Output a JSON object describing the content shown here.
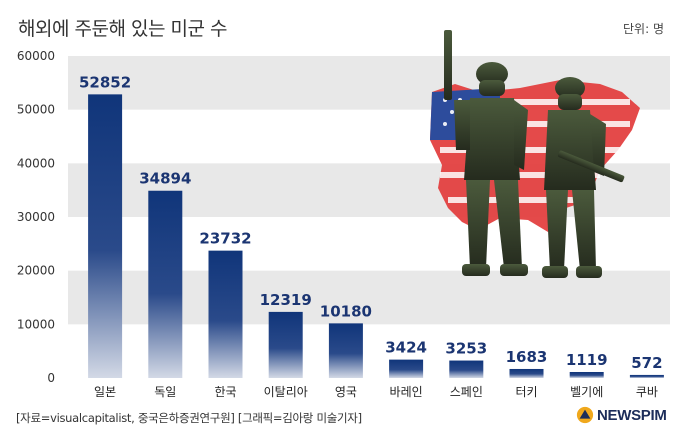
{
  "title": "해외에 주둔해 있는 미군 수",
  "unit": "단위: 명",
  "source": "[자료=visualcapitalist, 중국은하증권연구원] [그래픽=김아랑 미술기자]",
  "logo": "NEWSPIM",
  "colors": {
    "bar_top": "#10357a",
    "bar_bottom": "#c7cfe0",
    "band": "#e8e8e8",
    "label": "#1b3572"
  },
  "chart_data": {
    "type": "bar",
    "title": "해외에 주둔해 있는 미군 수",
    "ylabel": "",
    "xlabel": "",
    "ylim": [
      0,
      60000
    ],
    "yticks": [
      0,
      10000,
      20000,
      30000,
      40000,
      50000,
      60000
    ],
    "grid": "alternating horizontal bands",
    "categories": [
      "일본",
      "독일",
      "한국",
      "이탈리아",
      "영국",
      "바레인",
      "스페인",
      "터키",
      "벨기에",
      "쿠바"
    ],
    "values": [
      52852,
      34894,
      23732,
      12319,
      10180,
      3424,
      3253,
      1683,
      1119,
      572
    ]
  }
}
